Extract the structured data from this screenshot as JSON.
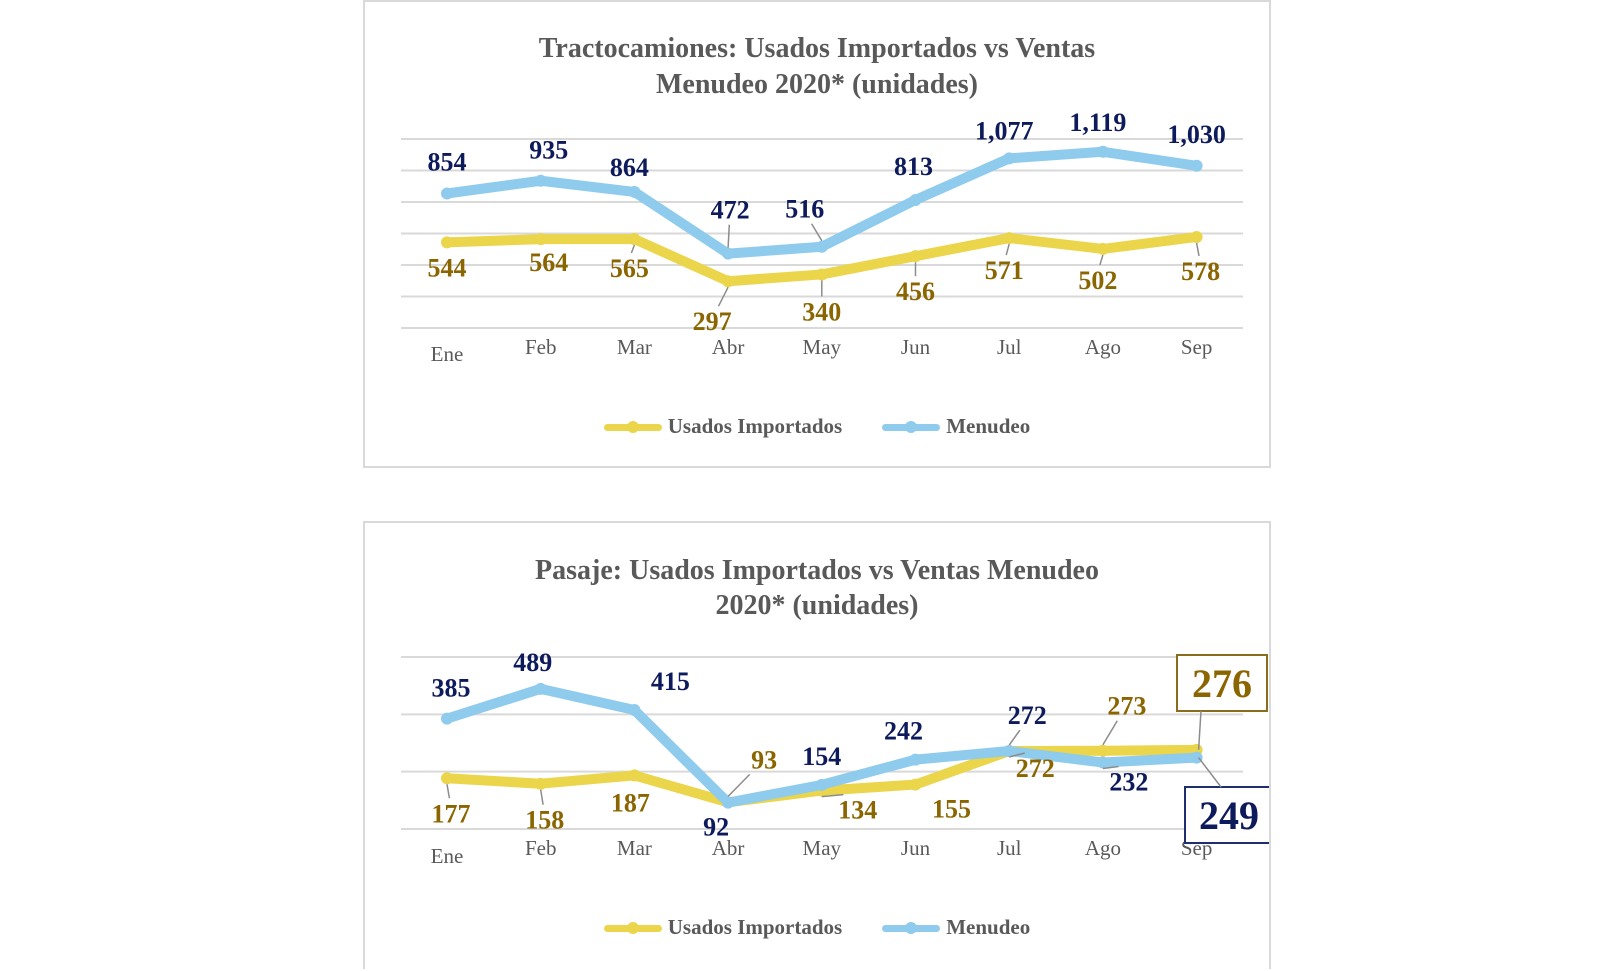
{
  "colors": {
    "usados_line": "#EBD54A",
    "menudeo_line": "#8FCBED",
    "usados_label": "#8A6500",
    "menudeo_label": "#0D1A5C",
    "grid": "#D9D9D9",
    "axis_text": "#595959"
  },
  "chart_data": [
    {
      "type": "line",
      "title_line1": "Tractocamiones: Usados Importados  vs Ventas",
      "title_line2": "Menudeo 2020* (unidades)",
      "categories": [
        "Ene",
        "Feb",
        "Mar",
        "Abr",
        "May",
        "Jun",
        "Jul",
        "Ago",
        "Sep"
      ],
      "ylim": [
        0,
        1200
      ],
      "grid_step": 200,
      "grid": true,
      "legend_position": "bottom",
      "series": [
        {
          "name": "Usados Importados",
          "values": [
            544,
            564,
            565,
            297,
            340,
            456,
            571,
            502,
            578
          ],
          "labels": [
            "544",
            "564",
            "565",
            "297",
            "340",
            "456",
            "571",
            "502",
            "578"
          ]
        },
        {
          "name": "Menudeo",
          "values": [
            854,
            935,
            864,
            472,
            516,
            813,
            1077,
            1119,
            1030
          ],
          "labels": [
            "854",
            "935",
            "864",
            "472",
            "516",
            "813",
            "1,077",
            "1,119",
            "1,030"
          ]
        }
      ]
    },
    {
      "type": "line",
      "title_line1": "Pasaje: Usados Importados  vs Ventas Menudeo",
      "title_line2": "2020* (unidades)",
      "categories": [
        "Ene",
        "Feb",
        "Mar",
        "Abr",
        "May",
        "Jun",
        "Jul",
        "Ago",
        "Sep"
      ],
      "ylim": [
        0,
        600
      ],
      "grid_step": 200,
      "grid": true,
      "legend_position": "bottom",
      "series": [
        {
          "name": "Usados Importados",
          "values": [
            177,
            158,
            187,
            93,
            134,
            155,
            272,
            273,
            276
          ],
          "labels": [
            "177",
            "158",
            "187",
            "93",
            "134",
            "155",
            "272",
            "273",
            "276"
          ]
        },
        {
          "name": "Menudeo",
          "values": [
            385,
            489,
            415,
            92,
            154,
            242,
            272,
            232,
            249
          ],
          "labels": [
            "385",
            "489",
            "415",
            "92",
            "154",
            "242",
            "272",
            "232",
            "249"
          ]
        }
      ]
    }
  ]
}
